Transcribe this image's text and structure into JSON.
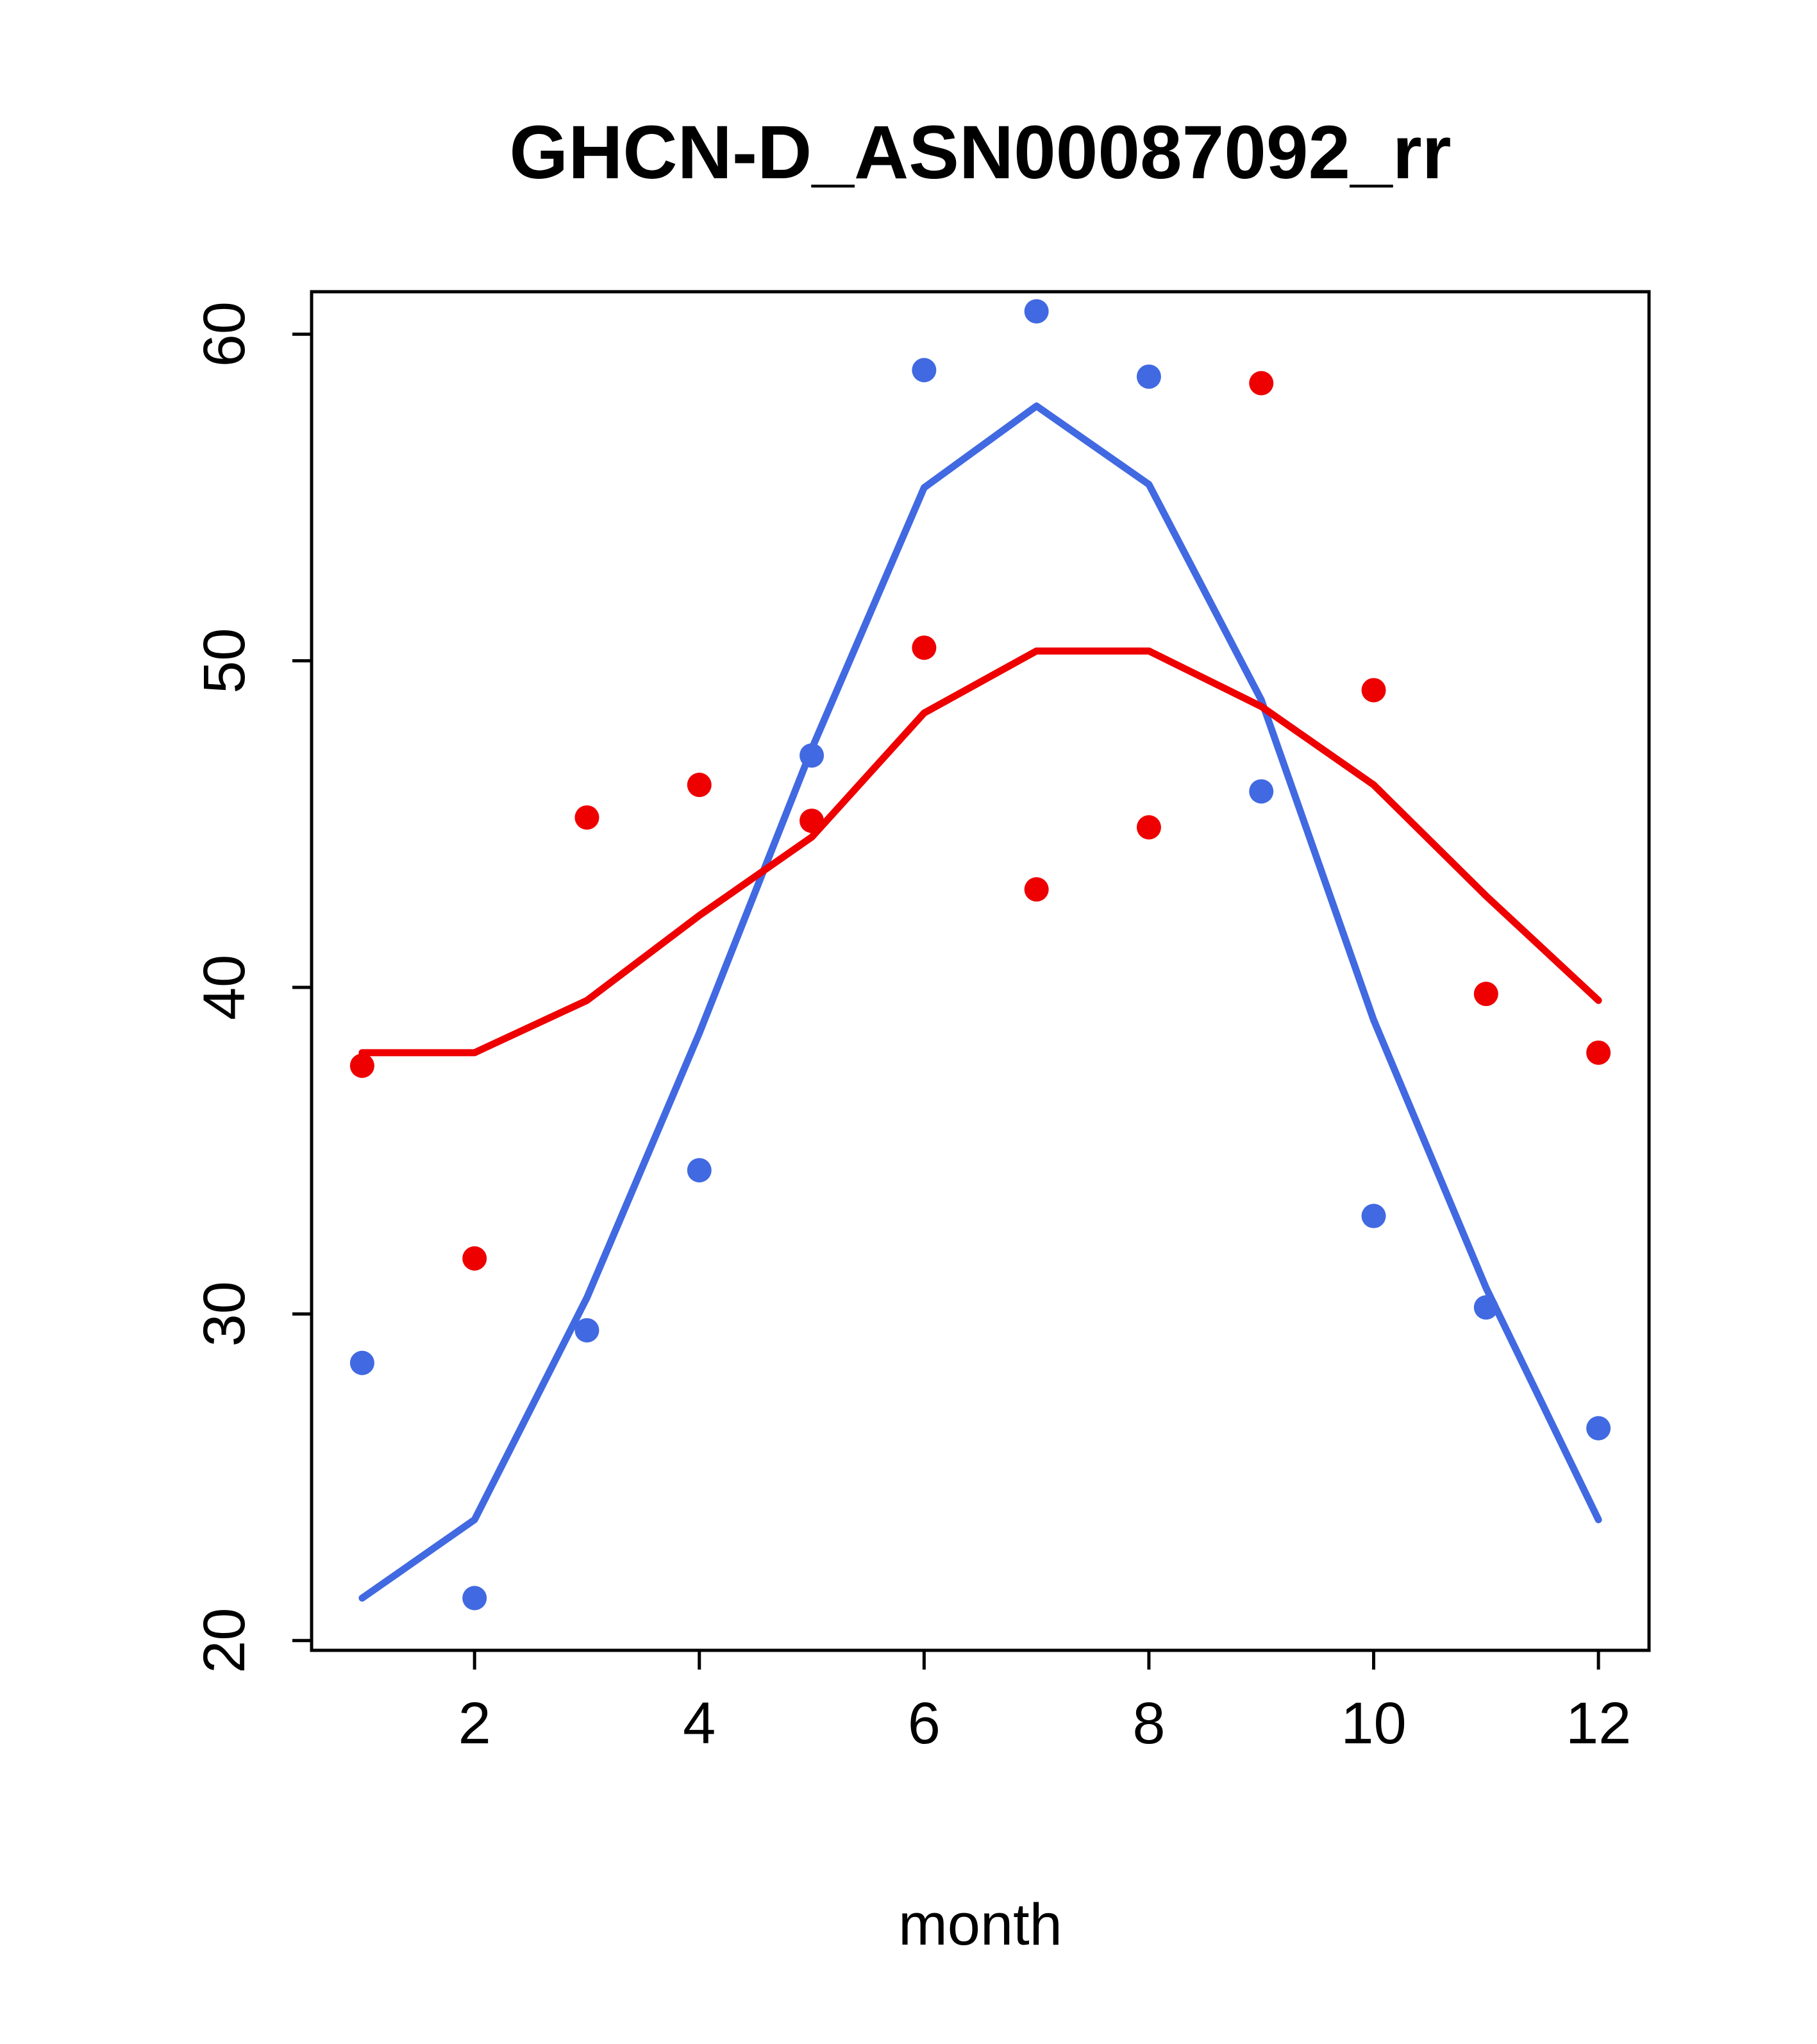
{
  "chart_data": {
    "type": "scatter",
    "title": "GHCN-D_ASN00087092_rr",
    "xlabel": "month",
    "ylabel": "",
    "xlim": [
      0.55,
      12.45
    ],
    "ylim": [
      19.7,
      61.3
    ],
    "xticks": [
      2,
      4,
      6,
      8,
      10,
      12
    ],
    "yticks": [
      20,
      30,
      40,
      50,
      60
    ],
    "x": [
      1,
      2,
      3,
      4,
      5,
      6,
      7,
      8,
      9,
      10,
      11,
      12
    ],
    "grid": false,
    "legend": "none",
    "colors": {
      "blue": "#4169E1",
      "red": "#EE0000",
      "axis": "#000000",
      "background": "#FFFFFF"
    },
    "series": [
      {
        "name": "blue-points",
        "kind": "points",
        "color": "#4169E1",
        "values": [
          28.5,
          21.3,
          29.5,
          34.4,
          47.1,
          58.9,
          60.7,
          58.7,
          46.0,
          33.0,
          30.2,
          26.5
        ]
      },
      {
        "name": "red-points",
        "kind": "points",
        "color": "#EE0000",
        "values": [
          37.6,
          31.7,
          45.2,
          46.2,
          45.1,
          50.4,
          43.0,
          44.9,
          58.5,
          49.1,
          39.8,
          38.0
        ]
      },
      {
        "name": "blue-smooth-line",
        "kind": "line",
        "color": "#4169E1",
        "values": [
          21.3,
          23.7,
          30.5,
          38.6,
          47.3,
          55.3,
          57.8,
          55.4,
          48.8,
          39.0,
          30.8,
          23.7
        ]
      },
      {
        "name": "red-smooth-line",
        "kind": "line",
        "color": "#EE0000",
        "values": [
          38.0,
          38.0,
          39.6,
          42.2,
          44.6,
          48.4,
          50.3,
          50.3,
          48.6,
          46.2,
          42.8,
          39.6
        ]
      }
    ]
  }
}
